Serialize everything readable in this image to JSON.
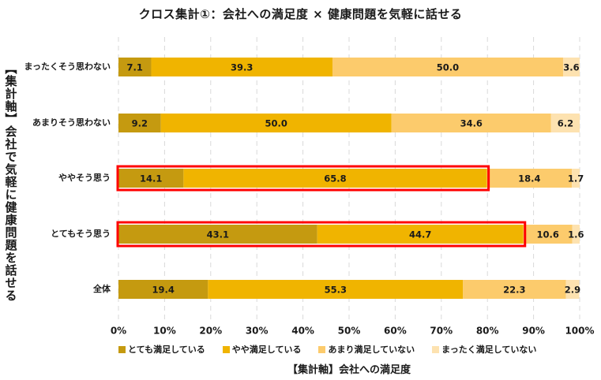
{
  "chart_data": {
    "type": "bar",
    "orientation": "horizontal",
    "stacked": true,
    "title": "クロス集計①：会社への満足度 × 健康問題を気軽に話せる",
    "xlabel": "【集計軸】会社への満足度",
    "ylabel": "【集計軸】会社で気軽に健康問題を話せる",
    "categories": [
      "まったくそう思わない",
      "あまりそう思わない",
      "ややそう思う",
      "とてもそう思う",
      "全体"
    ],
    "series": [
      {
        "name": "とても満足している",
        "color": "#c59a10",
        "values": [
          7.1,
          9.2,
          14.1,
          43.1,
          19.4
        ]
      },
      {
        "name": "やや満足している",
        "color": "#f0b400",
        "values": [
          39.3,
          50.0,
          65.8,
          44.7,
          55.3
        ]
      },
      {
        "name": "あまり満足していない",
        "color": "#fccb6c",
        "values": [
          50.0,
          34.6,
          18.4,
          10.6,
          22.3
        ]
      },
      {
        "name": "まったく満足していない",
        "color": "#fde2b0",
        "values": [
          3.6,
          6.2,
          1.7,
          1.6,
          2.9
        ]
      }
    ],
    "value_labels": [
      [
        "7.1",
        "9.2",
        "14.1",
        "43.1",
        "19.4"
      ],
      [
        "39.3",
        "50.0",
        "65.8",
        "44.7",
        "55.3"
      ],
      [
        "50.0",
        "34.6",
        "18.4",
        "10.6",
        "22.3"
      ],
      [
        "3.6",
        "6.2",
        "1.7",
        "1.6",
        "2.9"
      ]
    ],
    "xlim": [
      0,
      100
    ],
    "xticks": [
      "0%",
      "10%",
      "20%",
      "30%",
      "40%",
      "50%",
      "60%",
      "70%",
      "80%",
      "90%",
      "100%"
    ],
    "grid": "vertical",
    "legend_position": "bottom",
    "highlights": [
      {
        "category": "ややそう思う",
        "series_count": 2,
        "color": "#ff0000"
      },
      {
        "category": "とてもそう思う",
        "series_count": 2,
        "color": "#ff0000"
      }
    ]
  }
}
